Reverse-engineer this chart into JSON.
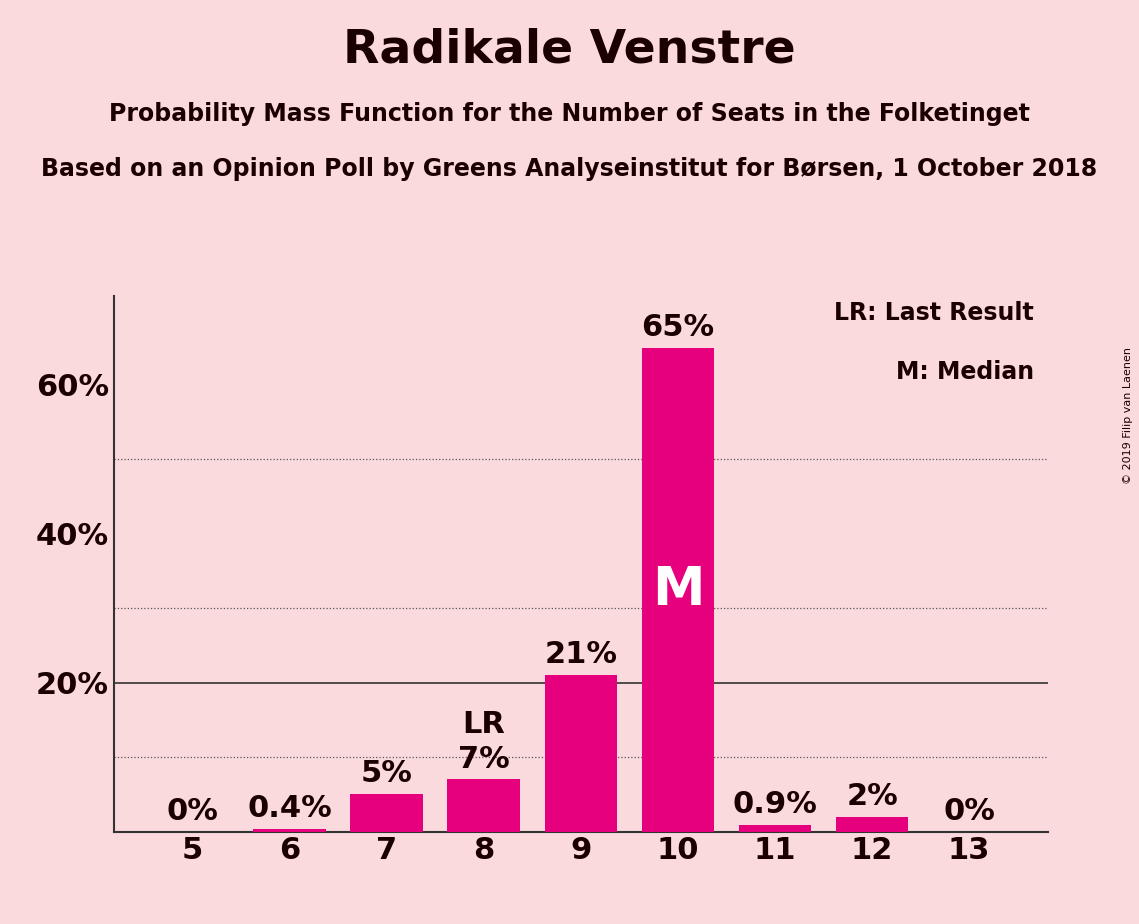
{
  "title": "Radikale Venstre",
  "subtitle1": "Probability Mass Function for the Number of Seats in the Folketinget",
  "subtitle2": "Based on an Opinion Poll by Greens Analyseinstitut for Børsen, 1 October 2018",
  "copyright": "© 2019 Filip van Laenen",
  "categories": [
    5,
    6,
    7,
    8,
    9,
    10,
    11,
    12,
    13
  ],
  "values": [
    0.0,
    0.4,
    5.0,
    7.0,
    21.0,
    65.0,
    0.9,
    2.0,
    0.0
  ],
  "labels": [
    "0%",
    "0.4%",
    "5%",
    "7%",
    "21%",
    "65%",
    "0.9%",
    "2%",
    "0%"
  ],
  "bar_color": "#e6007e",
  "background_color": "#fadadd",
  "median_bar": 10,
  "lr_bar": 8,
  "median_label": "M",
  "lr_label": "LR",
  "legend_lr": "LR: Last Result",
  "legend_m": "M: Median",
  "ytick_labels": [
    "20%",
    "40%",
    "60%"
  ],
  "ytick_values": [
    20,
    40,
    60
  ],
  "dotted_grid": [
    10,
    30,
    50
  ],
  "solid_grid": [
    20
  ],
  "ylim": [
    0,
    72
  ],
  "title_fontsize": 34,
  "subtitle_fontsize": 17,
  "axis_label_fontsize": 22,
  "bar_label_fontsize": 22,
  "inside_label_fontsize": 38,
  "legend_fontsize": 17,
  "text_color": "#1a0000"
}
